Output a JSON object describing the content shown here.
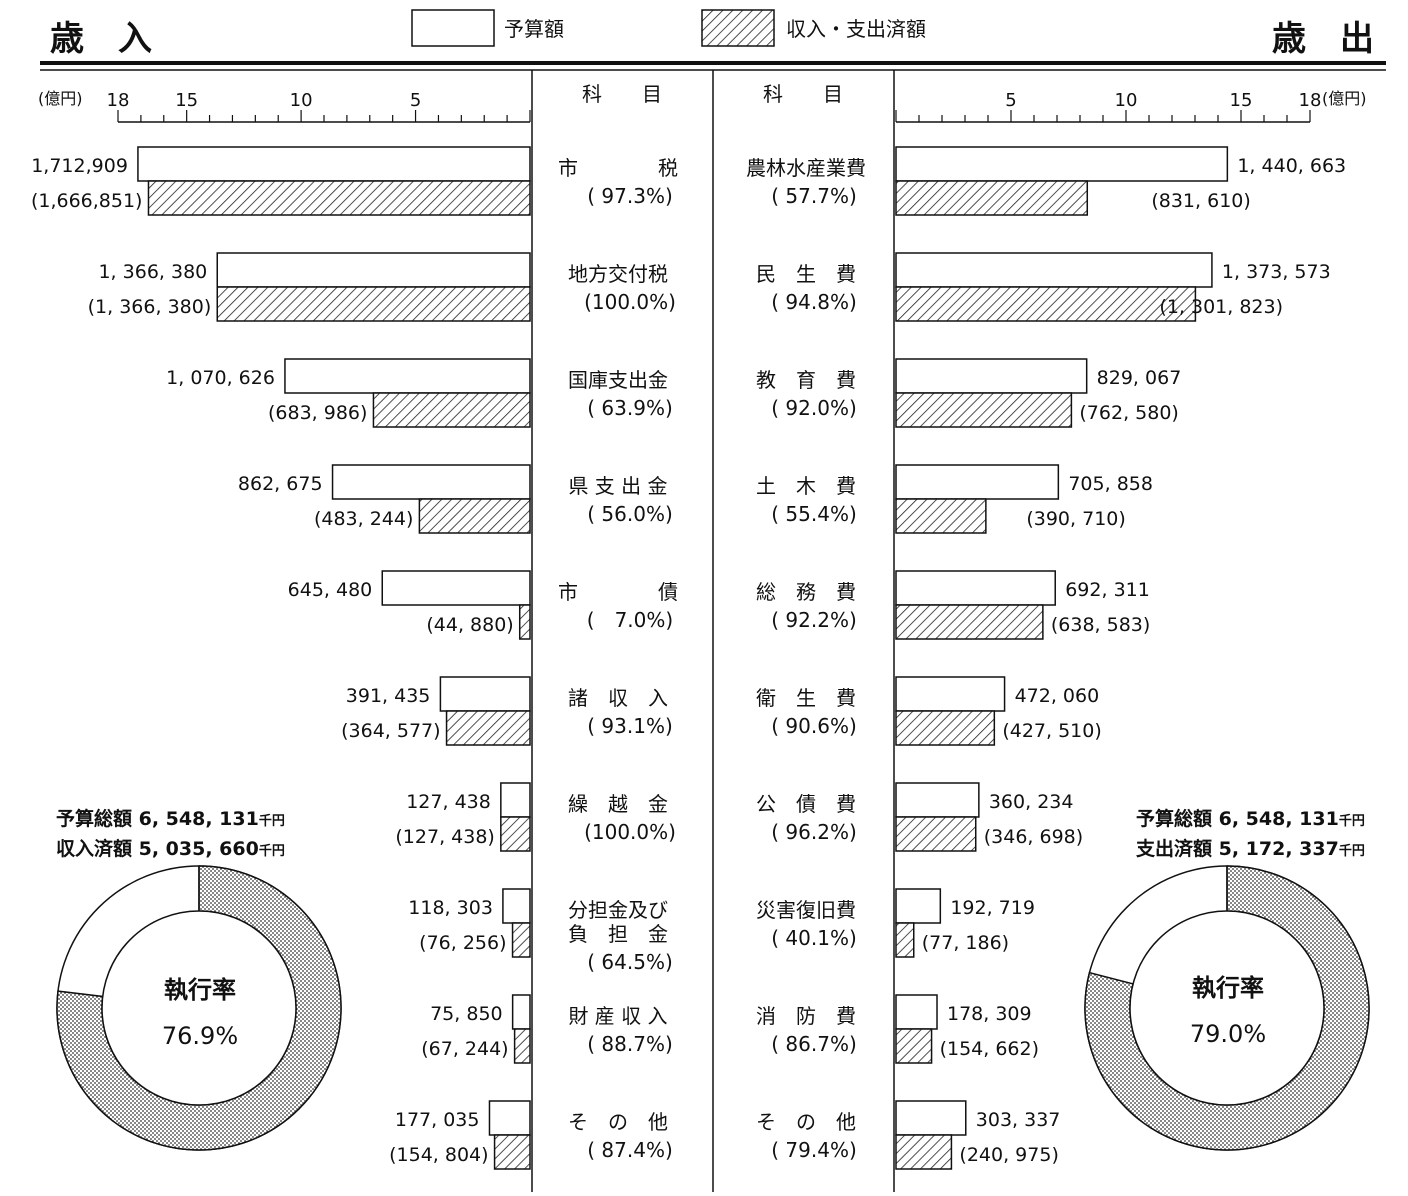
{
  "header": {
    "left_title": "歳　入",
    "right_title": "歳　出",
    "legend": {
      "budget_label": "予算額",
      "actual_label": "収入・支出済額"
    }
  },
  "revenue_axis": {
    "unit_label": "(億円)",
    "tick_labels": [
      "18",
      "15",
      "10",
      "5"
    ]
  },
  "expense_axis": {
    "unit_label": "(億円)",
    "tick_labels": [
      "5",
      "10",
      "15",
      "18"
    ]
  },
  "center": {
    "col_head_left": "科　　目",
    "col_head_right": "科　　目"
  },
  "revenue_summary": {
    "budget_line": "予算総額 6, 548, 131",
    "actual_line": "収入済額 5, 035, 660",
    "unit": "千円",
    "donut_title": "執行率",
    "donut_value": "76.9%",
    "rate": 0.769
  },
  "expense_summary": {
    "budget_line": "予算総額 6, 548, 131",
    "actual_line": "支出済額 5, 172, 337",
    "unit": "千円",
    "donut_title": "執行率",
    "donut_value": "79.0%",
    "rate": 0.79
  },
  "chart_data": {
    "type": "bar",
    "unit": "千円",
    "axis_max_oku": 18,
    "revenue": [
      {
        "name": "市税",
        "name_lines": [
          "市　　　　税"
        ],
        "pct": "( 97.3%)",
        "budget": 1712909,
        "actual": 1666851,
        "budget_label": "1,712,909",
        "actual_label": "(1,666,851)"
      },
      {
        "name": "地方交付税",
        "name_lines": [
          "地方交付税"
        ],
        "pct": "(100.0%)",
        "budget": 1366380,
        "actual": 1366380,
        "budget_label": "1, 366, 380",
        "actual_label": "(1, 366, 380)"
      },
      {
        "name": "国庫支出金",
        "name_lines": [
          "国庫支出金"
        ],
        "pct": "( 63.9%)",
        "budget": 1070626,
        "actual": 683986,
        "budget_label": "1, 070, 626",
        "actual_label": "(683, 986)"
      },
      {
        "name": "県支出金",
        "name_lines": [
          "県 支 出 金"
        ],
        "pct": "( 56.0%)",
        "budget": 862675,
        "actual": 483244,
        "budget_label": "862, 675",
        "actual_label": "(483, 244)"
      },
      {
        "name": "市債",
        "name_lines": [
          "市　　　　債"
        ],
        "pct": "(　7.0%)",
        "budget": 645480,
        "actual": 44880,
        "budget_label": "645, 480",
        "actual_label": "(44, 880)"
      },
      {
        "name": "諸収入",
        "name_lines": [
          "諸　収　入"
        ],
        "pct": "( 93.1%)",
        "budget": 391435,
        "actual": 364577,
        "budget_label": "391, 435",
        "actual_label": "(364, 577)"
      },
      {
        "name": "繰越金",
        "name_lines": [
          "繰　越　金"
        ],
        "pct": "(100.0%)",
        "budget": 127438,
        "actual": 127438,
        "budget_label": "127, 438",
        "actual_label": "(127, 438)"
      },
      {
        "name": "分担金及び負担金",
        "name_lines": [
          "分担金及び",
          "負　担　金"
        ],
        "pct": "( 64.5%)",
        "budget": 118303,
        "actual": 76256,
        "budget_label": "118, 303",
        "actual_label": "(76, 256)"
      },
      {
        "name": "財産収入",
        "name_lines": [
          "財 産 収 入"
        ],
        "pct": "( 88.7%)",
        "budget": 75850,
        "actual": 67244,
        "budget_label": "75, 850",
        "actual_label": "(67, 244)"
      },
      {
        "name": "その他",
        "name_lines": [
          "そ　の　他"
        ],
        "pct": "( 87.4%)",
        "budget": 177035,
        "actual": 154804,
        "budget_label": "177, 035",
        "actual_label": "(154, 804)"
      }
    ],
    "expenditure": [
      {
        "name": "農林水産業費",
        "name_lines": [
          "農林水産業費"
        ],
        "pct": "( 57.7%)",
        "budget": 1440663,
        "actual": 831610,
        "budget_label": "1, 440, 663",
        "actual_label": "(831, 610)"
      },
      {
        "name": "民生費",
        "name_lines": [
          "民　生　費"
        ],
        "pct": "( 94.8%)",
        "budget": 1373573,
        "actual": 1301823,
        "budget_label": "1, 373, 573",
        "actual_label": "(1, 301, 823)"
      },
      {
        "name": "教育費",
        "name_lines": [
          "教　育　費"
        ],
        "pct": "( 92.0%)",
        "budget": 829067,
        "actual": 762580,
        "budget_label": "829, 067",
        "actual_label": "(762, 580)"
      },
      {
        "name": "土木費",
        "name_lines": [
          "土　木　費"
        ],
        "pct": "( 55.4%)",
        "budget": 705858,
        "actual": 390710,
        "budget_label": "705, 858",
        "actual_label": "(390, 710)"
      },
      {
        "name": "総務費",
        "name_lines": [
          "総　務　費"
        ],
        "pct": "( 92.2%)",
        "budget": 692311,
        "actual": 638583,
        "budget_label": "692, 311",
        "actual_label": "(638, 583)"
      },
      {
        "name": "衛生費",
        "name_lines": [
          "衛　生　費"
        ],
        "pct": "( 90.6%)",
        "budget": 472060,
        "actual": 427510,
        "budget_label": "472, 060",
        "actual_label": "(427, 510)"
      },
      {
        "name": "公債費",
        "name_lines": [
          "公　債　費"
        ],
        "pct": "( 96.2%)",
        "budget": 360234,
        "actual": 346698,
        "budget_label": "360, 234",
        "actual_label": "(346, 698)"
      },
      {
        "name": "災害復旧費",
        "name_lines": [
          "災害復旧費"
        ],
        "pct": "( 40.1%)",
        "budget": 192719,
        "actual": 77186,
        "budget_label": "192, 719",
        "actual_label": "(77, 186)"
      },
      {
        "name": "消防費",
        "name_lines": [
          "消　防　費"
        ],
        "pct": "( 86.7%)",
        "budget": 178309,
        "actual": 154662,
        "budget_label": "178, 309",
        "actual_label": "(154, 662)"
      },
      {
        "name": "その他",
        "name_lines": [
          "そ　の　他"
        ],
        "pct": "( 79.4%)",
        "budget": 303337,
        "actual": 240975,
        "budget_label": "303, 337",
        "actual_label": "(240, 975)"
      }
    ]
  }
}
